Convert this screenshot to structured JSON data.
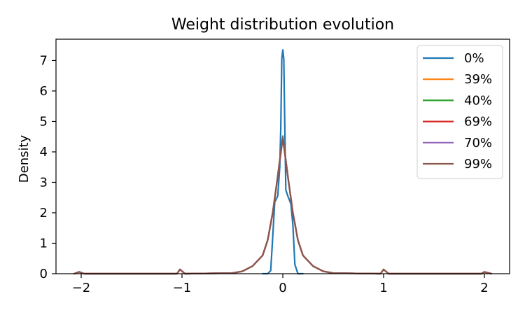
{
  "chart_data": {
    "type": "line",
    "title": "Weight distribution evolution",
    "xlabel": "",
    "ylabel": "Density",
    "xlim": [
      -2.25,
      2.25
    ],
    "ylim": [
      0,
      7.7
    ],
    "xticks": [
      -2,
      -1,
      0,
      1,
      2
    ],
    "xtick_labels": [
      "−2",
      "−1",
      "0",
      "1",
      "2"
    ],
    "yticks": [
      0,
      1,
      2,
      3,
      4,
      5,
      6,
      7
    ],
    "ytick_labels": [
      "0",
      "1",
      "2",
      "3",
      "4",
      "5",
      "6",
      "7"
    ],
    "grid": false,
    "legend_position": "top-right",
    "series": [
      {
        "name": "0%",
        "color": "#1f77b4",
        "x": [
          -0.2,
          -0.15,
          -0.12,
          -0.1,
          -0.08,
          -0.05,
          -0.03,
          -0.02,
          -0.01,
          0.0,
          0.01,
          0.02,
          0.03,
          0.05,
          0.08,
          0.1,
          0.12,
          0.15,
          0.2
        ],
        "y": [
          0,
          0,
          0.1,
          1.2,
          2.35,
          2.55,
          3.5,
          4.8,
          7.05,
          7.35,
          7.05,
          4.8,
          2.75,
          2.55,
          2.3,
          1.6,
          0.3,
          0,
          0
        ]
      },
      {
        "name": "39%",
        "color": "#ff7f0e",
        "x": [
          -2.07,
          -2.02,
          -1.97,
          -1.05,
          -1.02,
          -0.97,
          -0.5,
          -0.4,
          -0.3,
          -0.2,
          -0.15,
          -0.1,
          -0.05,
          0.0,
          0.05,
          0.1,
          0.15,
          0.2,
          0.3,
          0.4,
          0.5,
          0.97,
          1.0,
          1.05,
          1.97,
          2.0,
          2.07
        ],
        "y": [
          0,
          0.06,
          0,
          0,
          0.14,
          0,
          0.02,
          0.08,
          0.25,
          0.6,
          1.1,
          2.0,
          3.2,
          4.5,
          3.2,
          2.0,
          1.1,
          0.6,
          0.25,
          0.08,
          0.02,
          0,
          0.14,
          0,
          0,
          0.06,
          0
        ]
      },
      {
        "name": "40%",
        "color": "#2ca02c",
        "x": [
          -2.07,
          -2.02,
          -1.97,
          -1.05,
          -1.02,
          -0.97,
          -0.5,
          -0.4,
          -0.3,
          -0.2,
          -0.15,
          -0.1,
          -0.05,
          0.0,
          0.05,
          0.1,
          0.15,
          0.2,
          0.3,
          0.4,
          0.5,
          0.97,
          1.0,
          1.05,
          1.97,
          2.0,
          2.07
        ],
        "y": [
          0,
          0.06,
          0,
          0,
          0.14,
          0,
          0.02,
          0.08,
          0.25,
          0.6,
          1.1,
          2.0,
          3.2,
          4.52,
          3.2,
          2.0,
          1.1,
          0.6,
          0.25,
          0.08,
          0.02,
          0,
          0.14,
          0,
          0,
          0.06,
          0
        ]
      },
      {
        "name": "69%",
        "color": "#d62728",
        "x": [
          -2.07,
          -2.02,
          -1.97,
          -1.05,
          -1.02,
          -0.97,
          -0.5,
          -0.4,
          -0.3,
          -0.2,
          -0.15,
          -0.1,
          -0.05,
          0.0,
          0.05,
          0.1,
          0.15,
          0.2,
          0.3,
          0.4,
          0.5,
          0.97,
          1.0,
          1.05,
          1.97,
          2.0,
          2.07
        ],
        "y": [
          0,
          0.06,
          0,
          0,
          0.14,
          0,
          0.02,
          0.08,
          0.25,
          0.6,
          1.1,
          2.0,
          3.2,
          4.48,
          3.2,
          2.0,
          1.1,
          0.6,
          0.25,
          0.08,
          0.02,
          0,
          0.14,
          0,
          0,
          0.06,
          0
        ]
      },
      {
        "name": "70%",
        "color": "#9467bd",
        "x": [
          -2.07,
          -2.02,
          -1.97,
          -1.05,
          -1.02,
          -0.97,
          -0.5,
          -0.4,
          -0.3,
          -0.2,
          -0.15,
          -0.1,
          -0.05,
          0.0,
          0.05,
          0.1,
          0.15,
          0.2,
          0.3,
          0.4,
          0.5,
          0.97,
          1.0,
          1.05,
          1.97,
          2.0,
          2.07
        ],
        "y": [
          0,
          0.06,
          0,
          0,
          0.14,
          0,
          0.02,
          0.08,
          0.25,
          0.6,
          1.1,
          2.0,
          3.2,
          4.48,
          3.2,
          2.0,
          1.1,
          0.6,
          0.25,
          0.08,
          0.02,
          0,
          0.14,
          0,
          0,
          0.06,
          0
        ]
      },
      {
        "name": "99%",
        "color": "#8c564b",
        "x": [
          -2.07,
          -2.02,
          -1.97,
          -1.05,
          -1.02,
          -0.97,
          -0.5,
          -0.4,
          -0.3,
          -0.2,
          -0.15,
          -0.1,
          -0.05,
          0.0,
          0.05,
          0.1,
          0.15,
          0.2,
          0.3,
          0.4,
          0.5,
          0.97,
          1.0,
          1.05,
          1.97,
          2.0,
          2.07
        ],
        "y": [
          0,
          0.06,
          0,
          0,
          0.14,
          0,
          0.02,
          0.08,
          0.25,
          0.6,
          1.1,
          2.0,
          3.2,
          4.45,
          3.2,
          2.0,
          1.1,
          0.6,
          0.25,
          0.08,
          0.02,
          0,
          0.14,
          0,
          0,
          0.06,
          0
        ]
      }
    ]
  }
}
